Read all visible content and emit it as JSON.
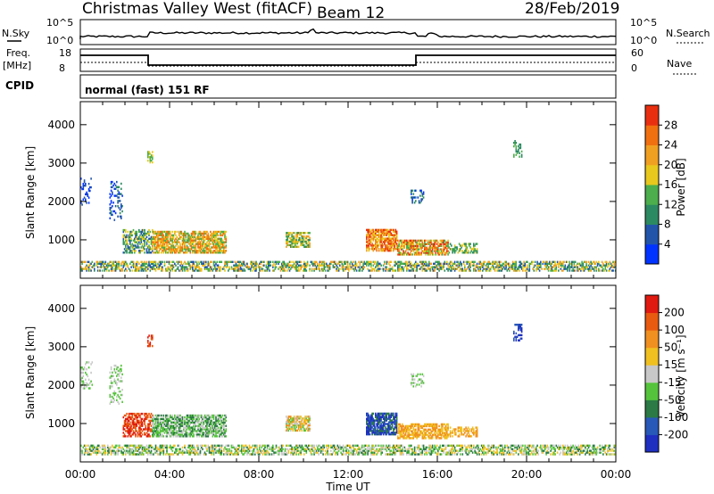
{
  "header": {
    "station": "Christmas Valley West (fitACF)",
    "beam": "Beam 12",
    "date": "28/Feb/2019"
  },
  "aux_panels": {
    "noise_left_label": "N.Sky",
    "noise_right_label": "N.Search",
    "noise_left_ticks": [
      "10^5",
      "10^0"
    ],
    "noise_right_ticks": [
      "10^5",
      "10^0"
    ],
    "freq_label_line1": "Freq.",
    "freq_label_line2": "[MHz]",
    "freq_ticks": [
      "18",
      "8"
    ],
    "nave_label": "Nave",
    "nave_ticks": [
      "60",
      "0"
    ],
    "cpid_label": "CPID",
    "cpid_text": "normal (fast) 151 RF"
  },
  "chart_data": [
    {
      "type": "heatmap",
      "panel": "power",
      "ylabel": "Slant Range [km]",
      "yticks": [
        "1000",
        "2000",
        "3000",
        "4000"
      ],
      "colorbar_label": "Power [dB]",
      "colorbar_ticks": [
        "4",
        "8",
        "12",
        "16",
        "20",
        "24",
        "28"
      ],
      "colors": [
        "#0033ff",
        "#2255aa",
        "#2c8a62",
        "#4cae4c",
        "#e8c81c",
        "#f0a020",
        "#f07010",
        "#e83010"
      ]
    },
    {
      "type": "heatmap",
      "panel": "velocity",
      "ylabel": "Slant Range [km]",
      "yticks": [
        "1000",
        "2000",
        "3000",
        "4000"
      ],
      "colorbar_label": "Velocity [m s⁻¹]",
      "colorbar_ticks": [
        "200",
        "100",
        "50",
        "15",
        "-15",
        "-50",
        "-100",
        "-200"
      ],
      "colors": [
        "#1f2fc0",
        "#2858b8",
        "#2c7a46",
        "#55c43c",
        "#c8c8c8",
        "#f0c020",
        "#f09020",
        "#e85a10",
        "#e01a10"
      ]
    }
  ],
  "x_axis": {
    "label": "Time UT",
    "ticks": [
      "00:00",
      "04:00",
      "08:00",
      "12:00",
      "16:00",
      "20:00",
      "00:00"
    ]
  }
}
